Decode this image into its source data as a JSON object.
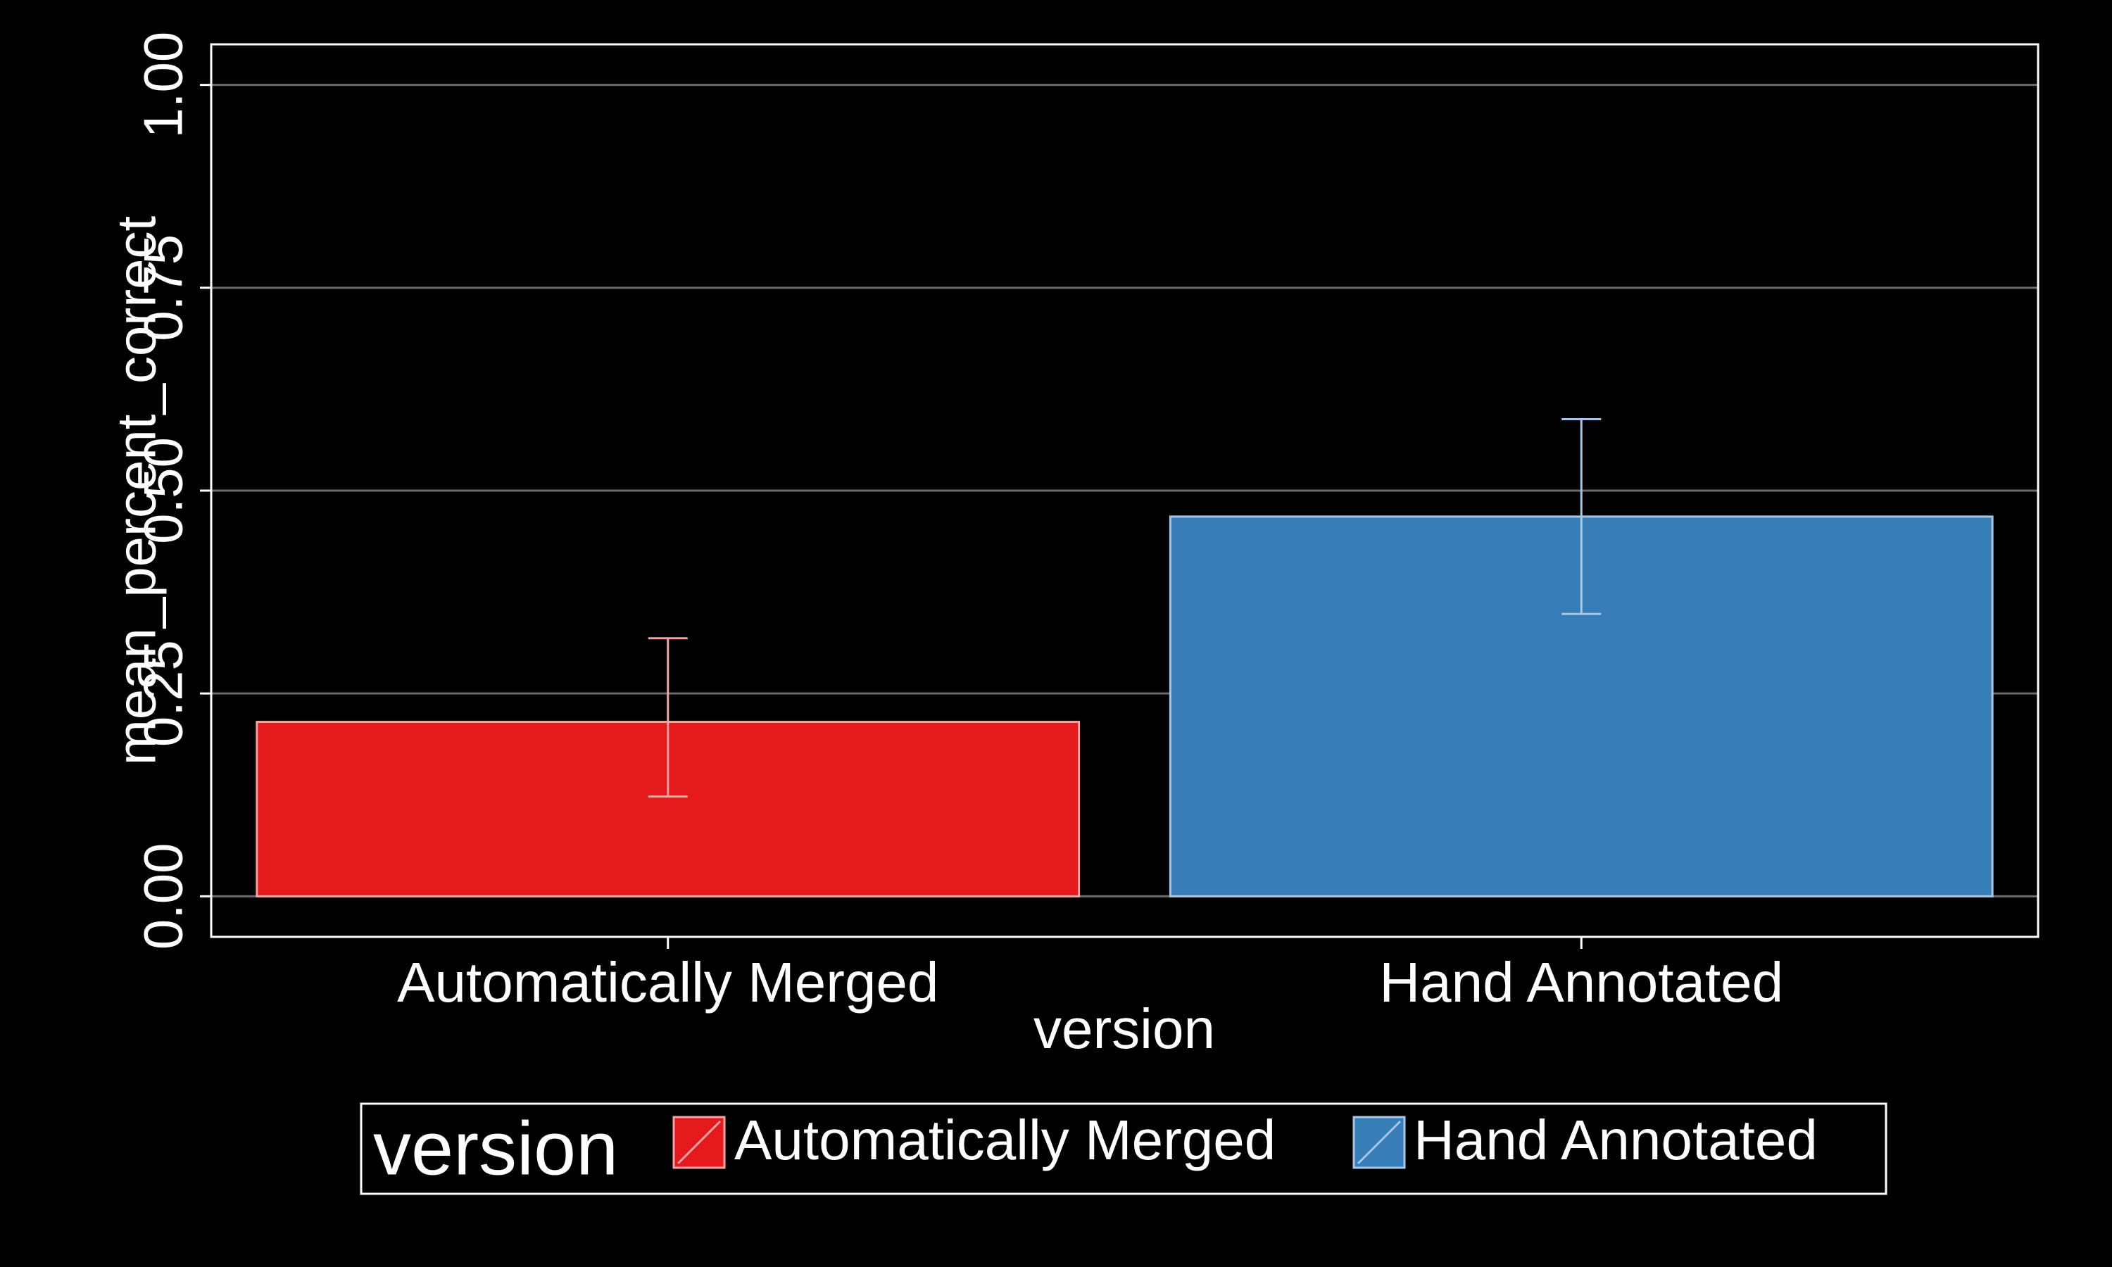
{
  "chart_data": {
    "type": "bar",
    "categories": [
      "Automatically Merged",
      "Hand Annotated"
    ],
    "values": [
      0.215,
      0.468
    ],
    "error_bars": [
      {
        "low": 0.123,
        "high": 0.318
      },
      {
        "low": 0.348,
        "high": 0.588
      }
    ],
    "bar_colors": [
      "#e41a1c",
      "#377eb8"
    ],
    "bar_outline_colors": [
      "#f4a3a2",
      "#a8c7e6"
    ],
    "xlabel": "version",
    "ylabel": "mean_percent_correct",
    "ylim": [
      -0.05,
      1.05
    ],
    "yticks": [
      0.0,
      0.25,
      0.5,
      0.75,
      1.0
    ],
    "ytick_labels": [
      "0.00",
      "0.25",
      "0.50",
      "0.75",
      "1.00"
    ],
    "grid": true,
    "background": "#000000",
    "foreground": "#ffffff",
    "legend": {
      "title": "version",
      "position": "bottom",
      "entries": [
        "Automatically Merged",
        "Hand Annotated"
      ]
    }
  }
}
